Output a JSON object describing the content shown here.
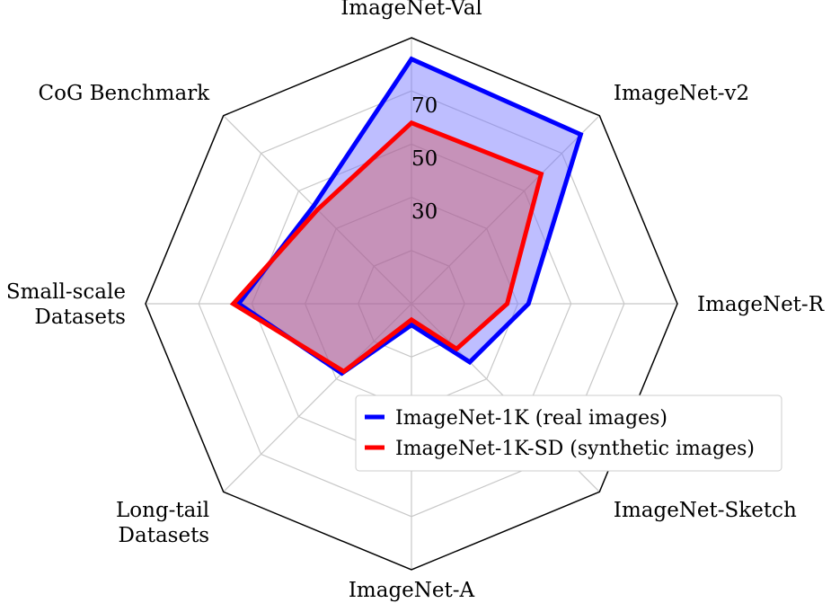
{
  "chart_data": {
    "type": "radar",
    "axes": [
      {
        "lines": [
          "ImageNet-Val"
        ]
      },
      {
        "lines": [
          "ImageNet-v2"
        ]
      },
      {
        "lines": [
          "ImageNet-R"
        ]
      },
      {
        "lines": [
          "ImageNet-Sketch"
        ]
      },
      {
        "lines": [
          "ImageNet-A"
        ]
      },
      {
        "lines": [
          "Long-tail",
          "Datasets"
        ]
      },
      {
        "lines": [
          "Small-scale",
          "Datasets"
        ]
      },
      {
        "lines": [
          "CoG Benchmark"
        ]
      }
    ],
    "radial_range": [
      0,
      100
    ],
    "radial_ticks": [
      "30",
      "50",
      "70"
    ],
    "tick_values": [
      30,
      50,
      70
    ],
    "grid": true,
    "legend_position": "lower-right",
    "series": [
      {
        "name": "ImageNet-1K (real images)",
        "color": "#0000ff",
        "fill": "rgba(110,110,255,0.45)",
        "values": [
          92,
          90,
          44,
          31,
          8,
          37,
          65,
          52
        ]
      },
      {
        "name": "ImageNet-1K-SD (synthetic images)",
        "color": "#ff0000",
        "fill": "rgba(210,80,80,0.40)",
        "values": [
          68,
          69,
          36,
          24,
          6,
          36,
          67,
          50
        ]
      }
    ]
  }
}
